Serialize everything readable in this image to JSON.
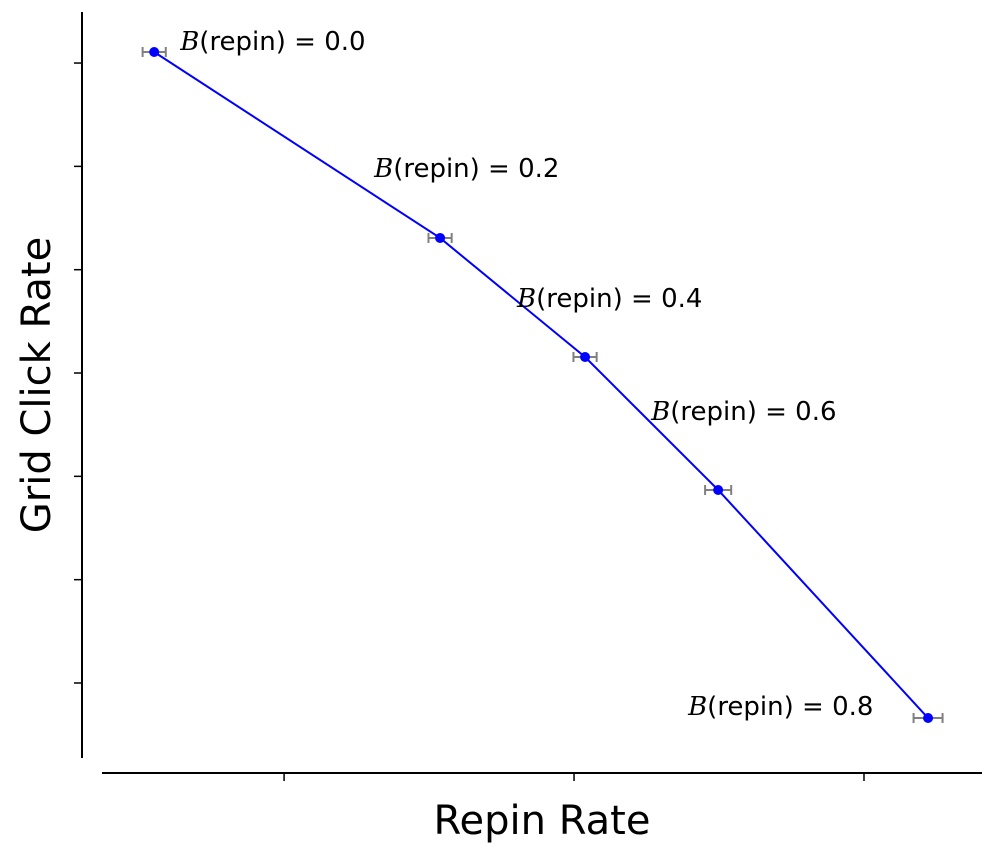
{
  "chart_data": {
    "type": "line",
    "title": "",
    "xlabel": "Repin Rate",
    "ylabel": "Grid Click Rate",
    "xlim": [
      0.372,
      3.407
    ],
    "ylim": [
      0.274,
      7.494
    ],
    "x_ticks": [
      1,
      2,
      3
    ],
    "y_ticks": [
      1,
      2,
      3,
      4,
      5,
      6,
      7
    ],
    "tick_labels_shown": false,
    "grid": false,
    "series": [
      {
        "color": "#0000ff",
        "error_bar_color": "#808080",
        "x": [
          0.552,
          1.538,
          2.038,
          2.497,
          3.221
        ],
        "y": [
          7.107,
          5.307,
          4.155,
          2.868,
          0.661
        ],
        "x_err": [
          0.04,
          0.04,
          0.04,
          0.045,
          0.05
        ],
        "labels": [
          "(repin) = 0.0",
          "(repin) = 0.2",
          "(repin) = 0.4",
          "(repin) = 0.6",
          "(repin) = 0.8"
        ],
        "label_prefix": "B"
      }
    ]
  }
}
